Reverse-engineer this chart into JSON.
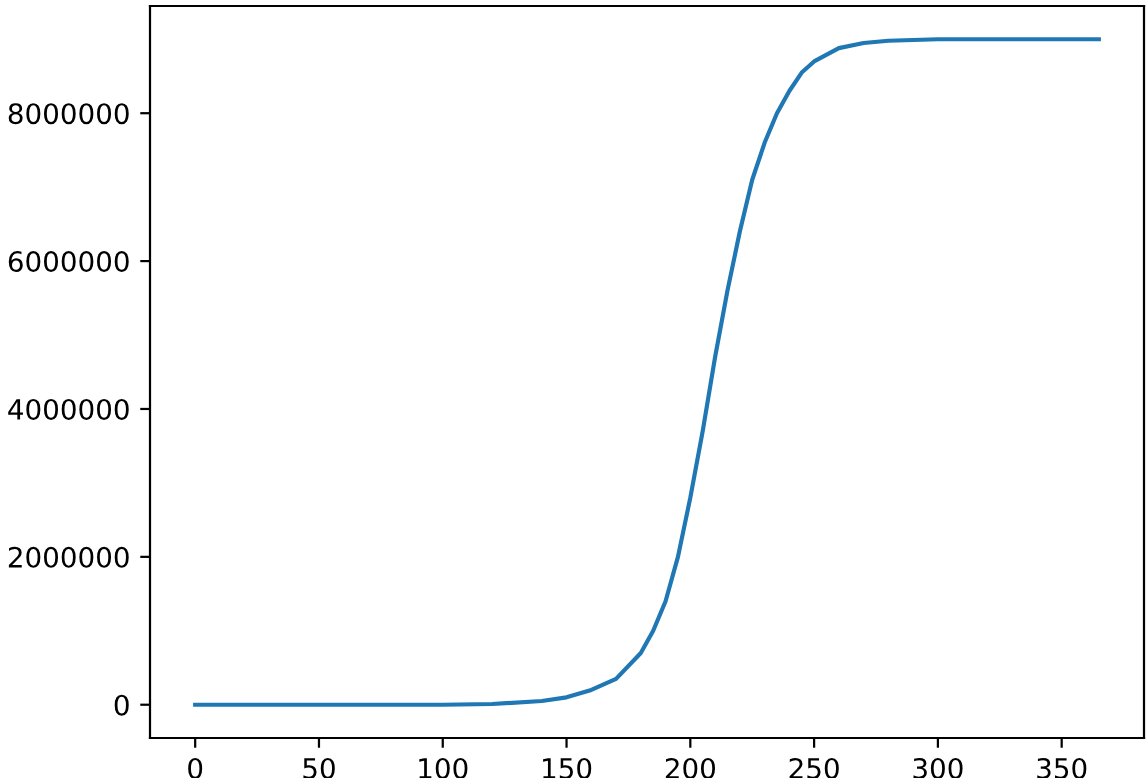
{
  "chart_data": {
    "type": "line",
    "x": [
      0,
      50,
      100,
      120,
      140,
      150,
      160,
      170,
      180,
      185,
      190,
      195,
      200,
      205,
      210,
      215,
      220,
      225,
      230,
      235,
      240,
      245,
      250,
      260,
      270,
      280,
      300,
      330,
      365
    ],
    "series": [
      {
        "color": "#1f77b4",
        "values": [
          0,
          0,
          0,
          10000,
          50000,
          100000,
          200000,
          350000,
          700000,
          1000000,
          1400000,
          2000000,
          2800000,
          3700000,
          4700000,
          5600000,
          6400000,
          7100000,
          7600000,
          8000000,
          8300000,
          8550000,
          8700000,
          8880000,
          8950000,
          8980000,
          9000000,
          9000000,
          9000000
        ]
      }
    ],
    "xlim": [
      -18.25,
      383.25
    ],
    "xticks": [
      0,
      50,
      100,
      150,
      200,
      250,
      300,
      350
    ],
    "ylim": [
      -450000,
      9450000
    ],
    "yticks": [
      0,
      2000000,
      4000000,
      6000000,
      8000000
    ],
    "grid": false,
    "legend": false
  }
}
